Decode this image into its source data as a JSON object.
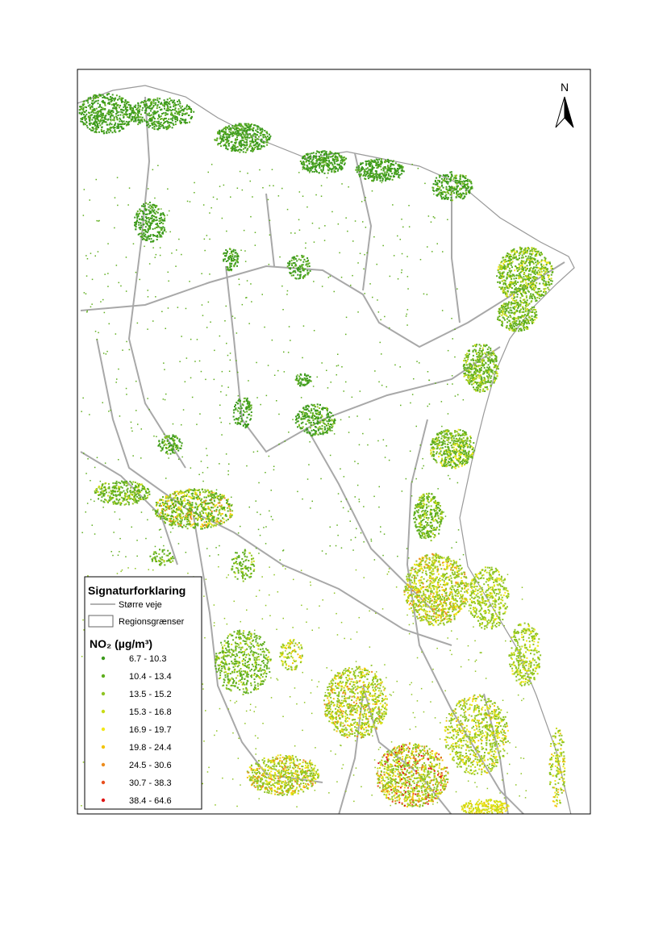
{
  "map": {
    "north_label": "N",
    "legend": {
      "title": "Signaturforklaring",
      "roads": "Større veje",
      "regions": "Regionsgrænser",
      "pollutant": "NO₂ (µg/m³)",
      "classes": [
        {
          "label": "6.7 - 10.3",
          "color": "#3c9a1c"
        },
        {
          "label": "10.4 - 13.4",
          "color": "#5fae1e"
        },
        {
          "label": "13.5 - 15.2",
          "color": "#8fc423"
        },
        {
          "label": "15.3 - 16.8",
          "color": "#c9dc16"
        },
        {
          "label": "16.9 - 19.7",
          "color": "#f2e81a"
        },
        {
          "label": "19.8 - 24.4",
          "color": "#f3c40c"
        },
        {
          "label": "24.5 - 30.6",
          "color": "#ec8c1e"
        },
        {
          "label": "30.7 - 38.3",
          "color": "#e8501e"
        },
        {
          "label": "38.4 - 64.6",
          "color": "#e01414"
        }
      ]
    }
  }
}
